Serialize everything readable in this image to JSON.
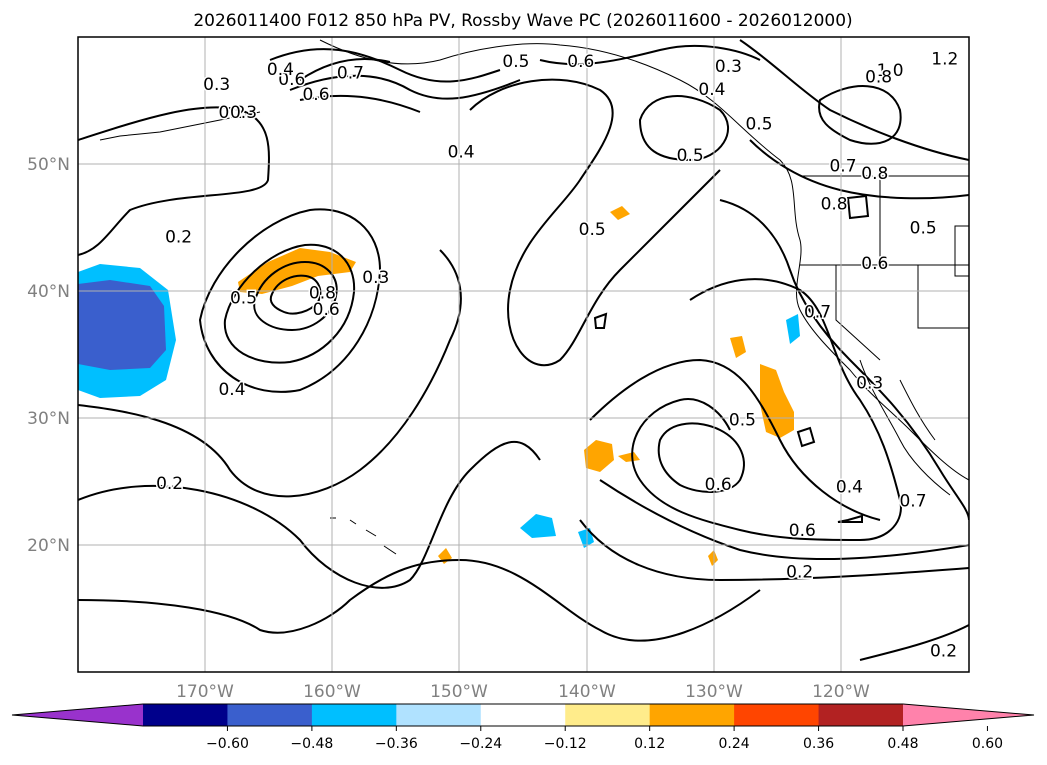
{
  "title": "2026011400 F012 850 hPa PV, Rossby Wave PC (2026011600 - 2026012000)",
  "lon_ticks": [
    "170°W",
    "160°W",
    "150°W",
    "140°W",
    "130°W",
    "120°W"
  ],
  "lat_ticks": [
    "50°N",
    "40°N",
    "30°N",
    "20°N"
  ],
  "map_extent": {
    "lon_min": -180,
    "lon_max": -110,
    "lat_min": 10,
    "lat_max": 60
  },
  "colorbar": {
    "colors": [
      "#9932cc",
      "#00008b",
      "#3a5fcd",
      "#00bfff",
      "#b0e2ff",
      "#ffffff",
      "#ffec8b",
      "#ffa500",
      "#ff4500",
      "#b22222",
      "#ff82ab"
    ],
    "tick_labels": [
      "−0.60",
      "−0.48",
      "−0.36",
      "−0.24",
      "−0.12",
      "0.12",
      "0.24",
      "0.36",
      "0.48",
      "0.60"
    ]
  },
  "contour_labels": [
    {
      "text": "0.3",
      "lon": -169.1,
      "lat": 56.3
    },
    {
      "text": "0.2",
      "lon": -167.9,
      "lat": 54.1
    },
    {
      "text": "0.3",
      "lon": -167.0,
      "lat": 54.1
    },
    {
      "text": "0.6",
      "lon": -163.2,
      "lat": 56.7
    },
    {
      "text": "0.4",
      "lon": -164.1,
      "lat": 57.5
    },
    {
      "text": "0.7",
      "lon": -158.6,
      "lat": 57.2
    },
    {
      "text": "0.6",
      "lon": -161.3,
      "lat": 55.5
    },
    {
      "text": "0.4",
      "lon": -149.9,
      "lat": 51.0
    },
    {
      "text": "0.5",
      "lon": -145.6,
      "lat": 58.1
    },
    {
      "text": "0.6",
      "lon": -140.5,
      "lat": 58.1
    },
    {
      "text": "0.3",
      "lon": -128.9,
      "lat": 57.7
    },
    {
      "text": "0.4",
      "lon": -130.2,
      "lat": 55.9
    },
    {
      "text": "0.5",
      "lon": -131.9,
      "lat": 50.7
    },
    {
      "text": "0.5",
      "lon": -126.5,
      "lat": 53.2
    },
    {
      "text": "0.7",
      "lon": -119.9,
      "lat": 49.9
    },
    {
      "text": "0.8",
      "lon": -117.4,
      "lat": 49.3
    },
    {
      "text": "0.8",
      "lon": -120.6,
      "lat": 46.9
    },
    {
      "text": "0.5",
      "lon": -113.6,
      "lat": 45.0
    },
    {
      "text": "0.6",
      "lon": -117.4,
      "lat": 42.2
    },
    {
      "text": "1.0",
      "lon": -116.2,
      "lat": 57.4
    },
    {
      "text": "0.8",
      "lon": -117.1,
      "lat": 56.9
    },
    {
      "text": "1.2",
      "lon": -111.9,
      "lat": 58.3
    },
    {
      "text": "0.2",
      "lon": -172.1,
      "lat": 44.3
    },
    {
      "text": "0.5",
      "lon": -167.0,
      "lat": 39.5
    },
    {
      "text": "0.8",
      "lon": -160.8,
      "lat": 39.9
    },
    {
      "text": "0.6",
      "lon": -160.5,
      "lat": 38.6
    },
    {
      "text": "0.3",
      "lon": -156.6,
      "lat": 41.1
    },
    {
      "text": "0.4",
      "lon": -167.9,
      "lat": 32.3
    },
    {
      "text": "0.5",
      "lon": -139.6,
      "lat": 44.9
    },
    {
      "text": "0.7",
      "lon": -121.9,
      "lat": 38.4
    },
    {
      "text": "0.5",
      "lon": -127.8,
      "lat": 29.9
    },
    {
      "text": "0.3",
      "lon": -117.8,
      "lat": 32.8
    },
    {
      "text": "0.6",
      "lon": -129.7,
      "lat": 24.8
    },
    {
      "text": "0.6",
      "lon": -123.1,
      "lat": 21.2
    },
    {
      "text": "0.4",
      "lon": -119.4,
      "lat": 24.6
    },
    {
      "text": "0.7",
      "lon": -114.4,
      "lat": 23.5
    },
    {
      "text": "0.2",
      "lon": -172.8,
      "lat": 24.9
    },
    {
      "text": "0.2",
      "lon": -123.3,
      "lat": 17.9
    },
    {
      "text": "0.2",
      "lon": -112.0,
      "lat": 11.7
    }
  ]
}
